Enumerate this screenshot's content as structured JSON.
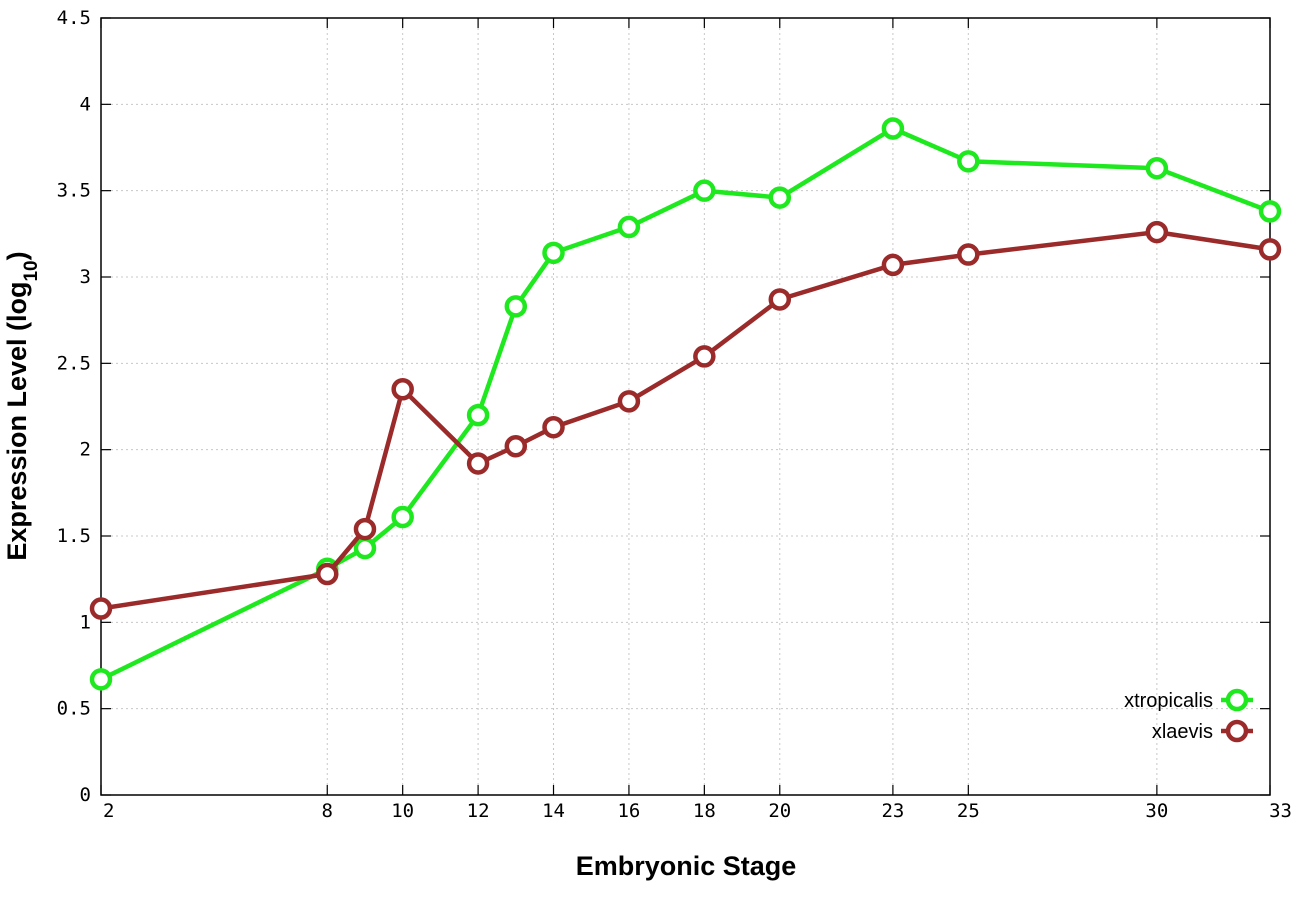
{
  "chart_data": {
    "type": "line",
    "xlabel": "Embryonic Stage",
    "ylabel_main": "Expression Level (log",
    "ylabel_sub": "10",
    "ylabel_close": ")",
    "ylim": [
      0,
      4.5
    ],
    "yticks": [
      "0",
      "0.5",
      "1",
      "1.5",
      "2",
      "2.5",
      "3",
      "3.5",
      "4",
      "4.5"
    ],
    "x": [
      2,
      8,
      9,
      10,
      12,
      13,
      14,
      16,
      18,
      20,
      23,
      25,
      30,
      33
    ],
    "xticks": [
      "2",
      "8",
      "10",
      "12",
      "14",
      "16",
      "18",
      "20",
      "23",
      "25",
      "30",
      "33"
    ],
    "grid": true,
    "legend_position": "bottom-right",
    "series": [
      {
        "name": "xtropicalis",
        "color": "#1ee81e",
        "values": [
          0.67,
          1.31,
          1.43,
          1.61,
          2.2,
          2.83,
          3.14,
          3.29,
          3.5,
          3.46,
          3.86,
          3.67,
          3.63,
          3.38
        ]
      },
      {
        "name": "xlaevis",
        "color": "#9b2a2a",
        "values": [
          1.08,
          1.28,
          1.54,
          2.35,
          1.92,
          2.02,
          2.13,
          2.28,
          2.54,
          2.87,
          3.07,
          3.13,
          3.26,
          3.16
        ]
      }
    ]
  }
}
